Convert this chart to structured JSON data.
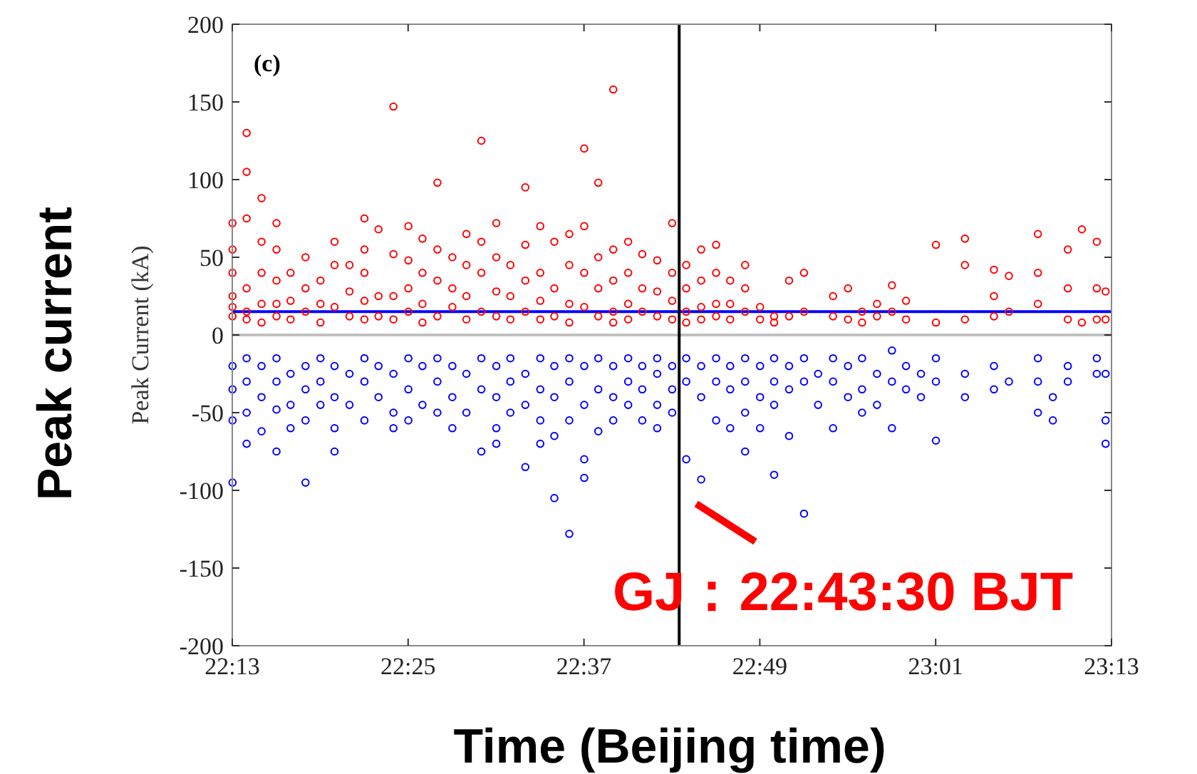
{
  "chart_data": {
    "type": "scatter",
    "xlabel": "Time (Beijing time)",
    "ylabel": "Peak Current (kA)",
    "annotations": [
      "(c)",
      "Peak current",
      {
        "text": "GJ：22:43:30 BJT",
        "x": 22.725,
        "y": -105
      }
    ],
    "xlim": [
      22.2167,
      23.2167
    ],
    "xticks": [
      {
        "value": 22.2167,
        "label": "22:13"
      },
      {
        "value": 22.4167,
        "label": "22:25"
      },
      {
        "value": 22.6167,
        "label": "22:37"
      },
      {
        "value": 22.8167,
        "label": "22:49"
      },
      {
        "value": 23.0167,
        "label": "23:01"
      },
      {
        "value": 23.2167,
        "label": "23:13"
      }
    ],
    "ylim": [
      -200,
      200
    ],
    "yticks": [
      -200,
      -150,
      -100,
      -50,
      0,
      50,
      100,
      150,
      200
    ],
    "grid": false,
    "marker": "circle",
    "ref_lines": [
      {
        "axis": "y",
        "value": 0,
        "color": "#c0c0c0"
      },
      {
        "axis": "y",
        "value": 15,
        "color": "#0000ff"
      },
      {
        "axis": "x",
        "value": 22.725,
        "color": "#000000"
      }
    ],
    "series": [
      {
        "color": "#ff0000",
        "x": [
          22.217,
          22.217,
          22.217,
          22.217,
          22.217,
          22.217,
          22.233,
          22.233,
          22.233,
          22.233,
          22.233,
          22.233,
          22.25,
          22.25,
          22.25,
          22.25,
          22.25,
          22.267,
          22.267,
          22.267,
          22.267,
          22.267,
          22.283,
          22.283,
          22.283,
          22.3,
          22.3,
          22.3,
          22.317,
          22.317,
          22.317,
          22.333,
          22.333,
          22.333,
          22.35,
          22.35,
          22.35,
          22.367,
          22.367,
          22.367,
          22.367,
          22.367,
          22.383,
          22.383,
          22.383,
          22.4,
          22.4,
          22.4,
          22.4,
          22.417,
          22.417,
          22.417,
          22.417,
          22.433,
          22.433,
          22.433,
          22.433,
          22.45,
          22.45,
          22.45,
          22.45,
          22.467,
          22.467,
          22.467,
          22.483,
          22.483,
          22.483,
          22.483,
          22.5,
          22.5,
          22.5,
          22.5,
          22.517,
          22.517,
          22.517,
          22.517,
          22.533,
          22.533,
          22.533,
          22.55,
          22.55,
          22.55,
          22.55,
          22.567,
          22.567,
          22.567,
          22.567,
          22.583,
          22.583,
          22.583,
          22.6,
          22.6,
          22.6,
          22.6,
          22.617,
          22.617,
          22.617,
          22.617,
          22.633,
          22.633,
          22.633,
          22.633,
          22.65,
          22.65,
          22.65,
          22.65,
          22.65,
          22.667,
          22.667,
          22.667,
          22.667,
          22.683,
          22.683,
          22.683,
          22.7,
          22.7,
          22.7,
          22.717,
          22.717,
          22.717,
          22.717,
          22.733,
          22.733,
          22.733,
          22.733,
          22.75,
          22.75,
          22.75,
          22.75,
          22.767,
          22.767,
          22.767,
          22.767,
          22.783,
          22.783,
          22.783,
          22.8,
          22.8,
          22.8,
          22.817,
          22.817,
          22.833,
          22.833,
          22.85,
          22.85,
          22.867,
          22.867,
          22.9,
          22.9,
          22.917,
          22.917,
          22.933,
          22.933,
          22.95,
          22.95,
          22.967,
          22.967,
          22.983,
          22.983,
          23.017,
          23.017,
          23.05,
          23.05,
          23.05,
          23.083,
          23.083,
          23.083,
          23.1,
          23.1,
          23.133,
          23.133,
          23.133,
          23.167,
          23.167,
          23.167,
          23.183,
          23.183,
          23.2,
          23.2,
          23.2,
          23.21,
          23.21
        ],
        "values": [
          72,
          55,
          40,
          25,
          18,
          12,
          130,
          105,
          75,
          30,
          15,
          10,
          88,
          60,
          40,
          20,
          8,
          72,
          55,
          35,
          20,
          12,
          40,
          22,
          10,
          50,
          30,
          15,
          35,
          20,
          8,
          60,
          45,
          18,
          45,
          28,
          12,
          75,
          55,
          40,
          22,
          10,
          68,
          25,
          12,
          147,
          52,
          25,
          10,
          70,
          48,
          30,
          15,
          62,
          40,
          20,
          8,
          98,
          55,
          35,
          12,
          50,
          30,
          18,
          65,
          45,
          25,
          10,
          125,
          60,
          40,
          15,
          72,
          50,
          28,
          12,
          45,
          25,
          10,
          95,
          58,
          35,
          15,
          70,
          40,
          22,
          10,
          60,
          30,
          12,
          65,
          45,
          20,
          8,
          120,
          70,
          40,
          18,
          98,
          50,
          30,
          12,
          158,
          55,
          35,
          15,
          8,
          60,
          40,
          20,
          10,
          52,
          30,
          15,
          48,
          28,
          12,
          72,
          40,
          22,
          10,
          45,
          30,
          15,
          8,
          55,
          35,
          18,
          10,
          58,
          40,
          20,
          12,
          35,
          20,
          10,
          45,
          30,
          15,
          18,
          10,
          12,
          8,
          35,
          12,
          40,
          15,
          25,
          12,
          30,
          10,
          15,
          8,
          20,
          12,
          32,
          15,
          22,
          10,
          58,
          8,
          62,
          45,
          10,
          42,
          25,
          12,
          38,
          15,
          65,
          40,
          20,
          55,
          30,
          10,
          68,
          8,
          60,
          30,
          10,
          28,
          10
        ]
      },
      {
        "color": "#0000ff",
        "x": [
          22.217,
          22.217,
          22.217,
          22.217,
          22.233,
          22.233,
          22.233,
          22.233,
          22.25,
          22.25,
          22.25,
          22.267,
          22.267,
          22.267,
          22.267,
          22.283,
          22.283,
          22.283,
          22.3,
          22.3,
          22.3,
          22.3,
          22.317,
          22.317,
          22.317,
          22.333,
          22.333,
          22.333,
          22.333,
          22.35,
          22.35,
          22.367,
          22.367,
          22.367,
          22.383,
          22.383,
          22.4,
          22.4,
          22.4,
          22.417,
          22.417,
          22.417,
          22.433,
          22.433,
          22.45,
          22.45,
          22.45,
          22.467,
          22.467,
          22.467,
          22.483,
          22.483,
          22.5,
          22.5,
          22.5,
          22.517,
          22.517,
          22.517,
          22.517,
          22.533,
          22.533,
          22.533,
          22.55,
          22.55,
          22.55,
          22.567,
          22.567,
          22.567,
          22.567,
          22.583,
          22.583,
          22.583,
          22.583,
          22.6,
          22.6,
          22.6,
          22.6,
          22.617,
          22.617,
          22.617,
          22.617,
          22.633,
          22.633,
          22.633,
          22.65,
          22.65,
          22.65,
          22.667,
          22.667,
          22.667,
          22.683,
          22.683,
          22.683,
          22.7,
          22.7,
          22.7,
          22.7,
          22.717,
          22.717,
          22.717,
          22.733,
          22.733,
          22.733,
          22.75,
          22.75,
          22.75,
          22.767,
          22.767,
          22.767,
          22.783,
          22.783,
          22.783,
          22.8,
          22.8,
          22.8,
          22.8,
          22.817,
          22.817,
          22.817,
          22.833,
          22.833,
          22.833,
          22.833,
          22.85,
          22.85,
          22.85,
          22.867,
          22.867,
          22.867,
          22.883,
          22.883,
          22.9,
          22.9,
          22.9,
          22.917,
          22.917,
          22.933,
          22.933,
          22.933,
          22.95,
          22.95,
          22.967,
          22.967,
          22.967,
          22.983,
          22.983,
          23.0,
          23.0,
          23.017,
          23.017,
          23.017,
          23.05,
          23.05,
          23.083,
          23.083,
          23.1,
          23.133,
          23.133,
          23.133,
          23.15,
          23.15,
          23.167,
          23.167,
          23.2,
          23.2,
          23.21,
          23.21,
          23.21
        ],
        "values": [
          -20,
          -35,
          -55,
          -95,
          -15,
          -30,
          -50,
          -70,
          -20,
          -40,
          -62,
          -15,
          -30,
          -48,
          -75,
          -25,
          -45,
          -60,
          -20,
          -35,
          -55,
          -95,
          -15,
          -30,
          -45,
          -20,
          -40,
          -60,
          -75,
          -25,
          -45,
          -15,
          -30,
          -55,
          -20,
          -40,
          -25,
          -50,
          -60,
          -15,
          -35,
          -55,
          -20,
          -45,
          -15,
          -30,
          -50,
          -20,
          -40,
          -60,
          -25,
          -50,
          -15,
          -35,
          -75,
          -20,
          -40,
          -60,
          -70,
          -15,
          -30,
          -50,
          -25,
          -45,
          -85,
          -15,
          -35,
          -55,
          -70,
          -20,
          -40,
          -65,
          -105,
          -15,
          -30,
          -55,
          -128,
          -20,
          -45,
          -80,
          -92,
          -15,
          -35,
          -62,
          -20,
          -40,
          -55,
          -15,
          -30,
          -45,
          -20,
          -35,
          -55,
          -15,
          -25,
          -45,
          -60,
          -20,
          -35,
          -50,
          -15,
          -30,
          -80,
          -20,
          -40,
          -93,
          -15,
          -30,
          -55,
          -20,
          -35,
          -60,
          -15,
          -30,
          -50,
          -75,
          -20,
          -40,
          -60,
          -15,
          -30,
          -45,
          -90,
          -20,
          -35,
          -65,
          -15,
          -30,
          -115,
          -25,
          -45,
          -15,
          -30,
          -60,
          -20,
          -40,
          -15,
          -35,
          -50,
          -25,
          -45,
          -10,
          -30,
          -60,
          -20,
          -35,
          -25,
          -40,
          -15,
          -30,
          -68,
          -25,
          -40,
          -20,
          -35,
          -30,
          -15,
          -30,
          -50,
          -40,
          -55,
          -20,
          -30,
          -15,
          -25,
          -25,
          -55,
          -70
        ]
      }
    ]
  }
}
